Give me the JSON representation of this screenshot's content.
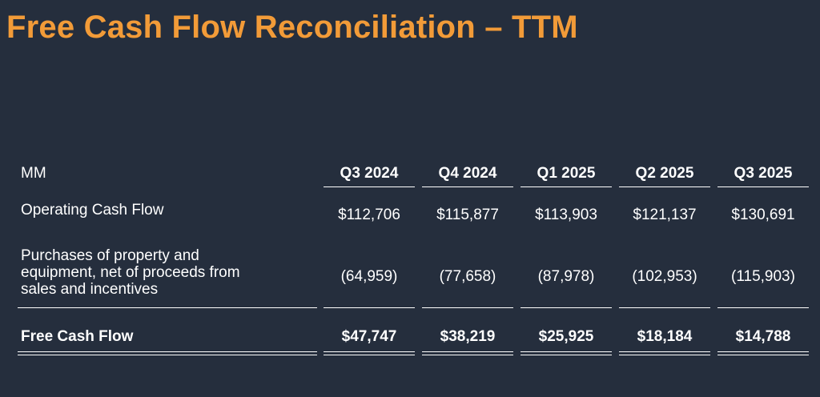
{
  "title": "Free Cash Flow Reconciliation – TTM",
  "table": {
    "unit_label": "MM",
    "columns": [
      "Q3 2024",
      "Q4 2024",
      "Q1 2025",
      "Q2 2025",
      "Q3 2025"
    ],
    "rows": [
      {
        "label": "Operating Cash Flow",
        "values": [
          "$112,706",
          "$115,877",
          "$113,903",
          "$121,137",
          "$130,691"
        ]
      },
      {
        "label_lines": [
          "Purchases of property and",
          "equipment, net of proceeds from",
          "sales and incentives"
        ],
        "values": [
          "(64,959)",
          "(77,658)",
          "(87,978)",
          "(102,953)",
          "(115,903)"
        ]
      },
      {
        "label": "Free Cash Flow",
        "values": [
          "$47,747",
          "$38,219",
          "$25,925",
          "$18,184",
          "$14,788"
        ]
      }
    ]
  }
}
